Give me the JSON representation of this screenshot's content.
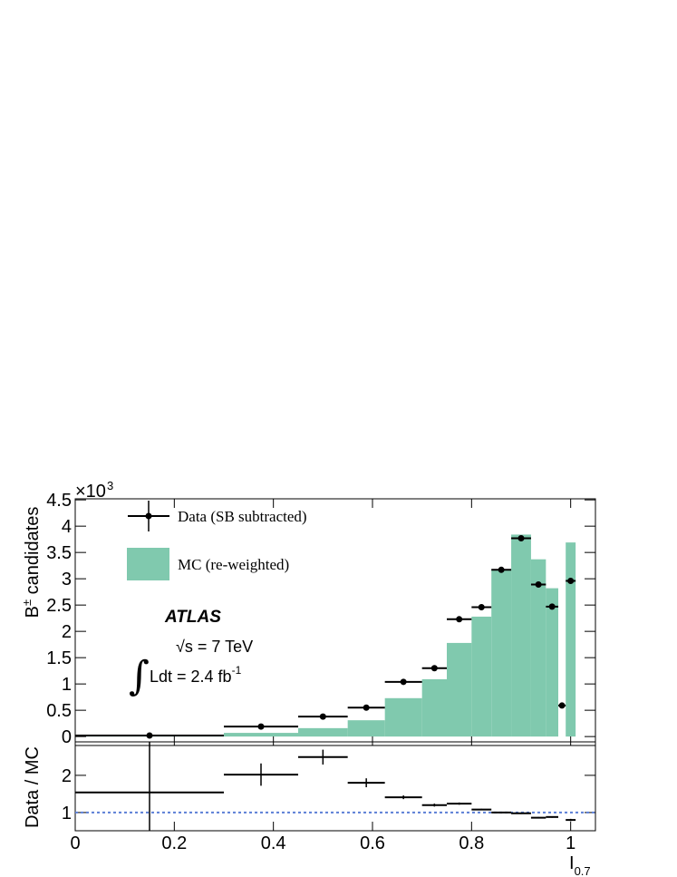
{
  "chart_data": [
    {
      "type": "histogram",
      "bins": [
        0,
        0.3,
        0.45,
        0.55,
        0.625,
        0.7,
        0.75,
        0.8,
        0.84,
        0.88,
        0.92,
        0.95,
        0.975,
        0.99,
        1.01
      ],
      "series": [
        {
          "name": "Data (SB subtracted)",
          "color": "#000000",
          "style": "points",
          "values": [
            0.02,
            0.19,
            0.38,
            0.55,
            1.04,
            1.3,
            2.23,
            2.46,
            3.17,
            3.77,
            2.89,
            2.47,
            0.59,
            2.96
          ]
        },
        {
          "name": "MC (re-weighted)",
          "color": "#80c9ae",
          "style": "filled",
          "values": [
            0.01,
            0.07,
            0.16,
            0.31,
            0.73,
            1.09,
            1.78,
            2.28,
            3.18,
            3.84,
            3.37,
            2.82,
            0,
            3.69
          ]
        }
      ],
      "xlim": [
        0,
        1.05
      ],
      "ylim": [
        -0.17,
        4.52
      ],
      "yticks": [
        0,
        0.5,
        1,
        1.5,
        2,
        2.5,
        3,
        3.5,
        4,
        4.5
      ],
      "y_scale_label": "×10",
      "y_scale_exponent": "3",
      "ylabel": "B",
      "ylabel_superscript": "±",
      "ylabel_rest": " candidates",
      "annotations": {
        "experiment": "ATLAS",
        "energy": "√s = 7 TeV",
        "integral": "∫",
        "lumi": "Ldt = 2.4 fb",
        "lumi_exponent": "-1"
      }
    },
    {
      "type": "errorbar",
      "ylabel": "Data / MC",
      "xlabel": "I",
      "xlabel_subscript": "0.7",
      "values": [
        1.54,
        2.02,
        2.49,
        1.8,
        1.41,
        1.2,
        1.24,
        1.08,
        1.0,
        0.98,
        0.86,
        0.88,
        null,
        0.8
      ],
      "errors": [
        2.0,
        0.3,
        0.2,
        0.12,
        0.05,
        0.04,
        0.03,
        0.02,
        0.02,
        0.02,
        0.02,
        0.02,
        null,
        0.03
      ],
      "reference": 1,
      "reference_color": "#5b7fd6",
      "xlim": [
        0,
        1.05
      ],
      "xticks": [
        0,
        0.2,
        0.4,
        0.6,
        0.8,
        1
      ],
      "ylim": [
        0.51,
        2.9
      ],
      "yticks": [
        1,
        2
      ]
    }
  ]
}
